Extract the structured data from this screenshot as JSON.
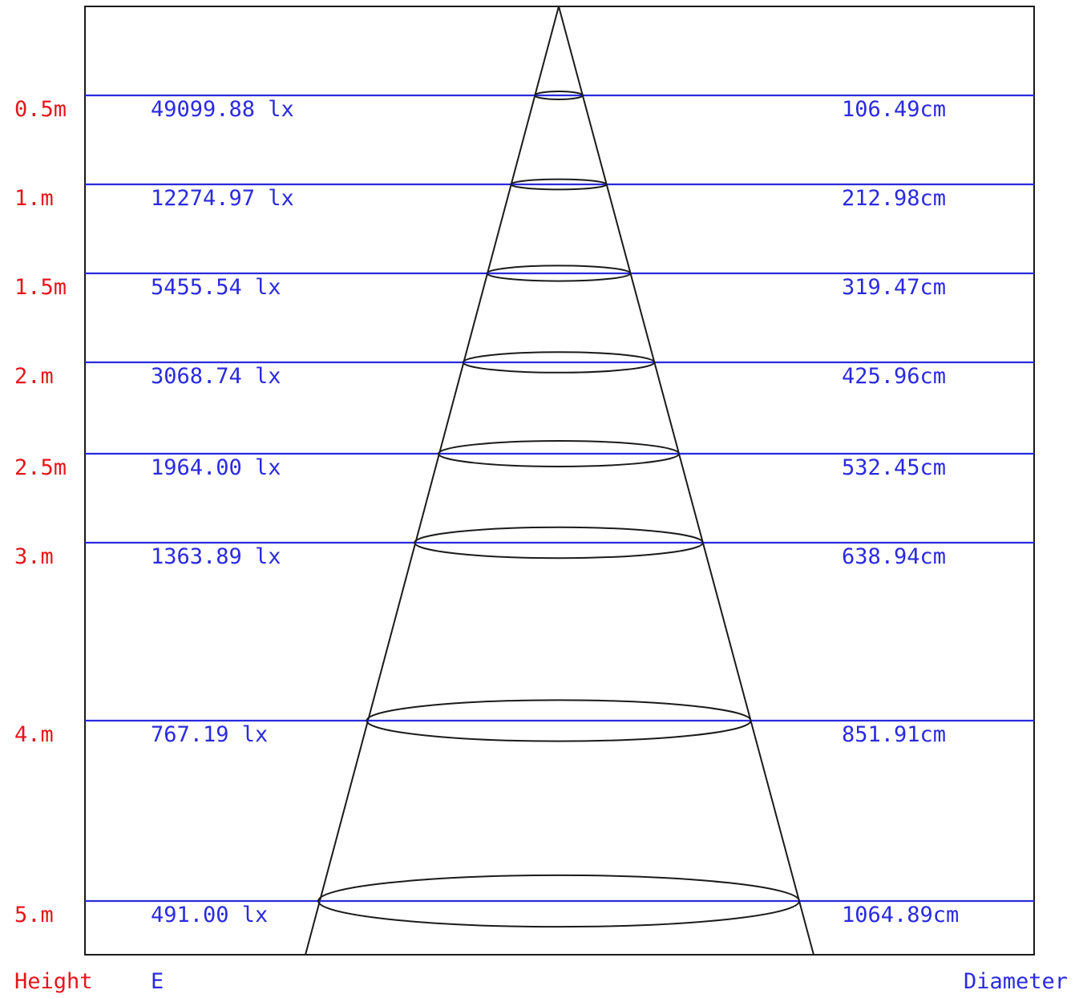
{
  "levels": [
    {
      "height": "0.5m",
      "illuminance": "49099.88 lx",
      "diameter": "106.49cm"
    },
    {
      "height": "1.m",
      "illuminance": "12274.97 lx",
      "diameter": "212.98cm"
    },
    {
      "height": "1.5m",
      "illuminance": "5455.54 lx",
      "diameter": "319.47cm"
    },
    {
      "height": "2.m",
      "illuminance": "3068.74 lx",
      "diameter": "425.96cm"
    },
    {
      "height": "2.5m",
      "illuminance": "1964.00 lx",
      "diameter": "532.45cm"
    },
    {
      "height": "3.m",
      "illuminance": "1363.89 lx",
      "diameter": "638.94cm"
    },
    {
      "height": "4.m",
      "illuminance": "767.19 lx",
      "diameter": "851.91cm"
    },
    {
      "height": "5.m",
      "illuminance": "491.00 lx",
      "diameter": "1064.89cm"
    }
  ],
  "footer": {
    "height_label": "Height",
    "illuminance_label": "E",
    "diameter_label": "Diameter"
  },
  "colors": {
    "height_text": "#e8141c",
    "value_text": "#2a2ae0",
    "level_line": "#2a2ae0",
    "outline": "#1a1a1a"
  }
}
